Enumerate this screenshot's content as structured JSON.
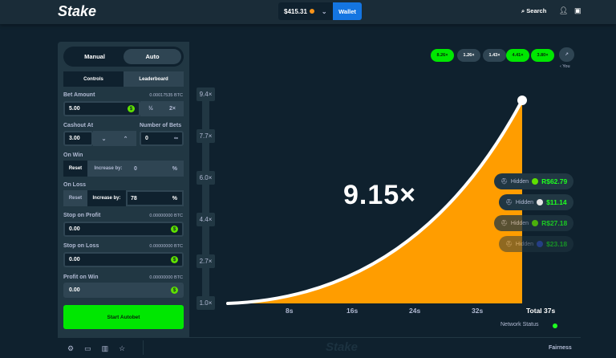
{
  "header": {
    "logo": "Stake",
    "balance": "$415.31",
    "wallet_label": "Wallet",
    "search_label": "Search"
  },
  "panel": {
    "mode_tabs": [
      "Manual",
      "Auto"
    ],
    "active_mode": "Auto",
    "sub_tabs": [
      "Controls",
      "Leaderboard"
    ],
    "active_sub_tab": "Controls",
    "bet_amount": {
      "label": "Bet Amount",
      "btc": "0.00017535 BTC",
      "value": "5.00",
      "half": "½",
      "double": "2×"
    },
    "cashout": {
      "label": "Cashout At",
      "value": "3.00"
    },
    "num_bets": {
      "label": "Number of Bets",
      "value": "0"
    },
    "on_win": {
      "label": "On Win",
      "reset": "Reset",
      "increase": "Increase by:",
      "value": "0",
      "unit": "%"
    },
    "on_loss": {
      "label": "On Loss",
      "reset": "Reset",
      "increase": "Increase by:",
      "value": "78",
      "unit": "%"
    },
    "stop_profit": {
      "label": "Stop on Profit",
      "btc": "0.00000000 BTC",
      "value": "0.00"
    },
    "stop_loss": {
      "label": "Stop on Loss",
      "btc": "0.00000000 BTC",
      "value": "0.00"
    },
    "profit_win": {
      "label": "Profit on Win",
      "btc": "0.00000000 BTC",
      "value": "0.00"
    },
    "start_label": "Start Autobet"
  },
  "game": {
    "multiplier": "9.15×",
    "history": [
      {
        "v": "8.26×",
        "win": true
      },
      {
        "v": "1.26×",
        "win": false
      },
      {
        "v": "1.43×",
        "win": false
      },
      {
        "v": "4.41×",
        "win": true
      },
      {
        "v": "3.80×",
        "win": true
      }
    ],
    "you_label": "‹ You",
    "y_ticks": [
      "9.4×",
      "7.7×",
      "6.0×",
      "4.4×",
      "2.7×",
      "1.0×"
    ],
    "x_ticks": [
      "8s",
      "16s",
      "24s",
      "32s",
      "Total 37s"
    ],
    "network_status": "Network Status",
    "wins": [
      {
        "user": "Hidden",
        "amount": "R$62.79",
        "coin_color": "#5fe000"
      },
      {
        "user": "Hidden",
        "amount": "$11.14",
        "coin_color": "#e6e6e6"
      },
      {
        "user": "Hidden",
        "amount": "R$27.18",
        "coin_color": "#5fe000"
      },
      {
        "user": "Hidden",
        "amount": "$23.18",
        "coin_color": "#3b5bdb"
      }
    ]
  },
  "footer": {
    "fairness": "Fairness",
    "logo": "Stake"
  },
  "colors": {
    "accent": "#00e701",
    "curve_fill": "#ff9d00",
    "wallet": "#1475e1"
  }
}
